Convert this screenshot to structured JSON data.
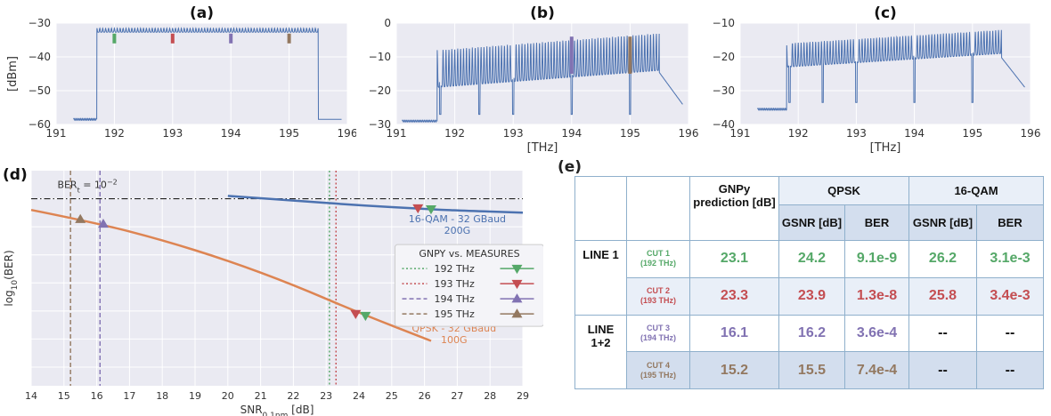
{
  "colors": {
    "spectrum": "#4c72b0",
    "c192": "#55a868",
    "c193": "#c44e52",
    "c194": "#8172b2",
    "c195": "#937860",
    "qpsk": "#dd8452",
    "qam16": "#4c72b0",
    "plot_bg": "#eaeaf2"
  },
  "chart_data": [
    {
      "panel": "(a)",
      "type": "line",
      "ylabel": "[dBm]",
      "xlabel": "",
      "xlim": [
        191,
        196
      ],
      "ylim": [
        -60,
        -30
      ],
      "xticks": [
        "191",
        "192",
        "193",
        "194",
        "195",
        "196"
      ],
      "yticks": [
        "-30",
        "-40",
        "-50",
        "-60"
      ],
      "grid": true,
      "spectrum": {
        "start": 191.3,
        "rise": 191.7,
        "fall": 195.5,
        "end": 195.9,
        "floor": -58.5,
        "top": -31.5,
        "ripple": 1.2,
        "tilt": 0
      },
      "highlights": [
        {
          "f": 192.0,
          "color": "c192"
        },
        {
          "f": 193.0,
          "color": "c193"
        },
        {
          "f": 194.0,
          "color": "c194"
        },
        {
          "f": 195.0,
          "color": "c195"
        }
      ]
    },
    {
      "panel": "(b)",
      "type": "line",
      "ylabel": "",
      "xlabel": "[THz]",
      "xlim": [
        191,
        196
      ],
      "ylim": [
        -30,
        0
      ],
      "xticks": [
        "191",
        "192",
        "193",
        "194",
        "195",
        "196"
      ],
      "yticks": [
        "0",
        "-10",
        "-20",
        "-30"
      ],
      "grid": true,
      "spectrum": {
        "start": 191.1,
        "rise": 191.7,
        "fall": 195.5,
        "end": 195.9,
        "floor": -29,
        "top": -8,
        "ripple": 11,
        "tilt": 5
      },
      "dips": [
        191.75,
        192.42,
        193.0,
        194.0,
        195.0
      ],
      "highlights": [
        {
          "f": 194.0,
          "color": "c194"
        },
        {
          "f": 195.0,
          "color": "c195"
        }
      ]
    },
    {
      "panel": "(c)",
      "type": "line",
      "ylabel": "",
      "xlabel": "[THz]",
      "xlim": [
        191,
        196
      ],
      "ylim": [
        -40,
        -10
      ],
      "xticks": [
        "191",
        "192",
        "193",
        "194",
        "195",
        "196"
      ],
      "yticks": [
        "-10",
        "-20",
        "-30",
        "-40"
      ],
      "grid": true,
      "spectrum": {
        "start": 191.3,
        "rise": 191.8,
        "fall": 195.5,
        "end": 195.9,
        "floor": -35.5,
        "top": -16,
        "ripple": 7,
        "tilt": 4
      },
      "dips": [
        191.85,
        192.42,
        193.0,
        194.0,
        195.0
      ],
      "highlights": []
    },
    {
      "panel": "(d)",
      "type": "line",
      "xlabel": "SNR",
      "xlabel_sub": "0,1nm",
      "xlabel_unit": " [dB]",
      "ylabel": "log",
      "ylabel_sub": "10",
      "ylabel_rest": "(BER)",
      "xlim": [
        14,
        29
      ],
      "xticks": [
        "14",
        "15",
        "16",
        "17",
        "18",
        "19",
        "20",
        "21",
        "22",
        "23",
        "24",
        "25",
        "26",
        "27",
        "28",
        "29"
      ],
      "ylim": [
        -12,
        -0.5
      ],
      "threshold": {
        "label": "BER",
        "label_sub": "t",
        "label_rest": " = 10",
        "label_sup": "−2",
        "y": -2
      },
      "series": [
        {
          "name": "QPSK - 32 GBaud",
          "name2": "100G",
          "color": "qpsk",
          "x": [
            14,
            16,
            18,
            20,
            22,
            24,
            26.2
          ],
          "y": [
            -2.6,
            -3.3,
            -4.2,
            -5.3,
            -6.6,
            -8.1,
            -9.6
          ]
        },
        {
          "name": "16-QAM - 32 GBaud",
          "name2": "200G",
          "color": "qam16",
          "x": [
            20,
            22,
            24,
            26,
            27,
            29
          ],
          "y": [
            -1.85,
            -2.1,
            -2.35,
            -2.55,
            -2.63,
            -2.75
          ]
        }
      ],
      "vlines": [
        {
          "x": 23.1,
          "color": "c192",
          "style": "dotted"
        },
        {
          "x": 23.3,
          "color": "c193",
          "style": "dotted"
        },
        {
          "x": 16.1,
          "color": "c194",
          "style": "dashed"
        },
        {
          "x": 15.2,
          "color": "c195",
          "style": "dashed"
        }
      ],
      "markers": [
        {
          "x": 24.2,
          "y": -8.25,
          "color": "c192",
          "shape": "down"
        },
        {
          "x": 23.9,
          "y": -8.15,
          "color": "c193",
          "shape": "down"
        },
        {
          "x": 26.2,
          "y": -2.55,
          "color": "c192",
          "shape": "down"
        },
        {
          "x": 25.8,
          "y": -2.5,
          "color": "c193",
          "shape": "down"
        },
        {
          "x": 16.2,
          "y": -3.35,
          "color": "c194",
          "shape": "up"
        },
        {
          "x": 15.5,
          "y": -3.1,
          "color": "c195",
          "shape": "up"
        }
      ],
      "legend": {
        "title": "GNPY vs. MEASURES",
        "position": "center-right",
        "entries": [
          {
            "label": "192 THz",
            "color": "c192",
            "style": "dotted",
            "shape": "down"
          },
          {
            "label": "193 THz",
            "color": "c193",
            "style": "dotted",
            "shape": "down"
          },
          {
            "label": "194 THz",
            "color": "c194",
            "style": "dashed",
            "shape": "up"
          },
          {
            "label": "195 THz",
            "color": "c195",
            "style": "dashed",
            "shape": "up"
          }
        ]
      }
    },
    {
      "panel": "(e)",
      "type": "table",
      "headers": {
        "gnpy": "GNPy prediction [dB]",
        "qpsk": "QPSK",
        "qam16": "16-QAM",
        "gsnr": "GSNR [dB]",
        "ber": "BER"
      },
      "groups": [
        {
          "line": "LINE 1",
          "rows": [
            {
              "cut": "CUT 1",
              "freq": "(192 THz)",
              "color": "c192",
              "gnpy": "23.1",
              "qpsk_gsnr": "24.2",
              "qpsk_ber": "9.1e-9",
              "qam_gsnr": "26.2",
              "qam_ber": "3.1e-3"
            },
            {
              "cut": "CUT 2",
              "freq": "(193 THz)",
              "color": "c193",
              "gnpy": "23.3",
              "qpsk_gsnr": "23.9",
              "qpsk_ber": "1.3e-8",
              "qam_gsnr": "25.8",
              "qam_ber": "3.4e-3"
            }
          ]
        },
        {
          "line": "LINE 1+2",
          "rows": [
            {
              "cut": "CUT 3",
              "freq": "(194 THz)",
              "color": "c194",
              "gnpy": "16.1",
              "qpsk_gsnr": "16.2",
              "qpsk_ber": "3.6e-4",
              "qam_gsnr": "--",
              "qam_ber": "--"
            },
            {
              "cut": "CUT 4",
              "freq": "(195 THz)",
              "color": "c195",
              "gnpy": "15.2",
              "qpsk_gsnr": "15.5",
              "qpsk_ber": "7.4e-4",
              "qam_gsnr": "--",
              "qam_ber": "--"
            }
          ]
        }
      ]
    }
  ]
}
